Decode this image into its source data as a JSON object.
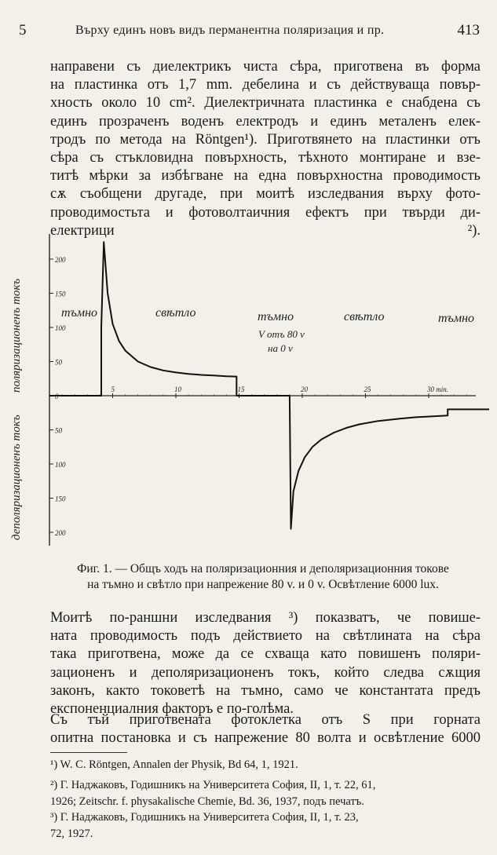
{
  "header": {
    "left": "5",
    "title": "Върху единъ новъ видъ перманентна поляризация и пр.",
    "page": "413"
  },
  "body": {
    "p1": [
      "направени съ диелектрикъ чиста сѣра, приготвена въ форма",
      "на пластинка отъ 1,7 mm. дебелина и съ действуваща повър-",
      "хность около 10 cm². Диелектричната пластинка е снабдена съ",
      "единъ прозраченъ воденъ електродъ и единъ металенъ елек-",
      "тродъ по метода на Röntgen¹). Приготвянето на пластинки отъ",
      "сѣра съ стъкловидна повърхность, тѣхното монтиране и взе-",
      "титѣ мѣрки за избѣгване на една повърхностна проводимость",
      "сѫ съобщени другаде, при моитѣ изследвания върху фото-",
      "проводимостьта и фотоволтаичния ефектъ при твърди ди-",
      "електрици ²).",
      ""
    ],
    "p2": [
      "Моитѣ по-раншни изследвания ³) показватъ, че повише-",
      "ната проводимость подъ действието на свѣтлината на сѣра",
      "така приготвена, може да се схваща като повишенъ поляри-",
      "зационенъ и деполяризационенъ токъ, който следва сѫщия",
      "законъ, както токоветѣ на тъмно, само че константата предъ",
      "експоненциалния факторъ е по-голѣма."
    ],
    "p3": [
      "Съ тъй приготвената фотоклетка отъ S при горната",
      "опитна постановка и съ напрежение 80 волта и освѣтление 6000"
    ]
  },
  "caption": [
    "Фиг. 1. — Общъ ходъ на поляризационния и деполяризационния токове",
    "на тъмно и свѣтло при напрежение 80 v. и 0 v. Освѣтление 6000 lux."
  ],
  "footnotes": [
    [
      "¹) W. C. Röntgen, Annalen der Physik, Bd 64, 1, 1921."
    ],
    [
      "²) Г. Наджаковъ, Годишникъ на Университета София, II, 1, т. 22, 61,",
      "1926; Zeitschr. f. physakalische Chemie, Bd. 36, 1937, подъ печатъ."
    ],
    [
      "³) Г. Наджаковъ, Годишникъ на Университета София, II, 1, т. 23,",
      "72, 1927."
    ]
  ],
  "chart_data": {
    "type": "line",
    "ylabel_top": "поляризационенъ токъ",
    "ylabel_bottom": "деполяризационенъ токъ",
    "yticks_top": [
      "200",
      "150",
      "100",
      "50",
      "0"
    ],
    "yticks_bottom": [
      "50",
      "100",
      "150",
      "200"
    ],
    "xticks": [
      "5",
      "10",
      "15",
      "20",
      "25",
      "30 min."
    ],
    "xlim": [
      0,
      36
    ],
    "ylim": [
      -215,
      230
    ],
    "regions": [
      "тъмно",
      "свѣтло",
      "тъмно",
      "свѣтло",
      "тъмно"
    ],
    "voltage_note": [
      "V отъ 80 v",
      "на 0 v"
    ],
    "series": [
      {
        "x": [
          0,
          4.1,
          4.1,
          4.3,
          4.6,
          5,
          5.5,
          6,
          7,
          8,
          9,
          10,
          11,
          12,
          13,
          14,
          14.8,
          14.8,
          19,
          19
        ],
        "y": [
          0,
          0,
          100,
          225,
          150,
          105,
          80,
          66,
          50,
          42,
          37,
          34,
          32,
          30.5,
          29.5,
          28.5,
          28,
          0,
          0,
          -1
        ]
      },
      {
        "x": [
          19,
          19.1,
          19.3,
          19.7,
          20.2,
          20.8,
          21.5,
          22.5,
          23.5,
          24.5,
          26,
          27.5,
          29,
          30.5,
          31.5,
          31.5,
          36
        ],
        "y": [
          -1,
          -195,
          -140,
          -110,
          -90,
          -75,
          -64,
          -54,
          -47,
          -42,
          -37,
          -34,
          -31.5,
          -30,
          -29,
          -20,
          -20
        ]
      }
    ]
  }
}
